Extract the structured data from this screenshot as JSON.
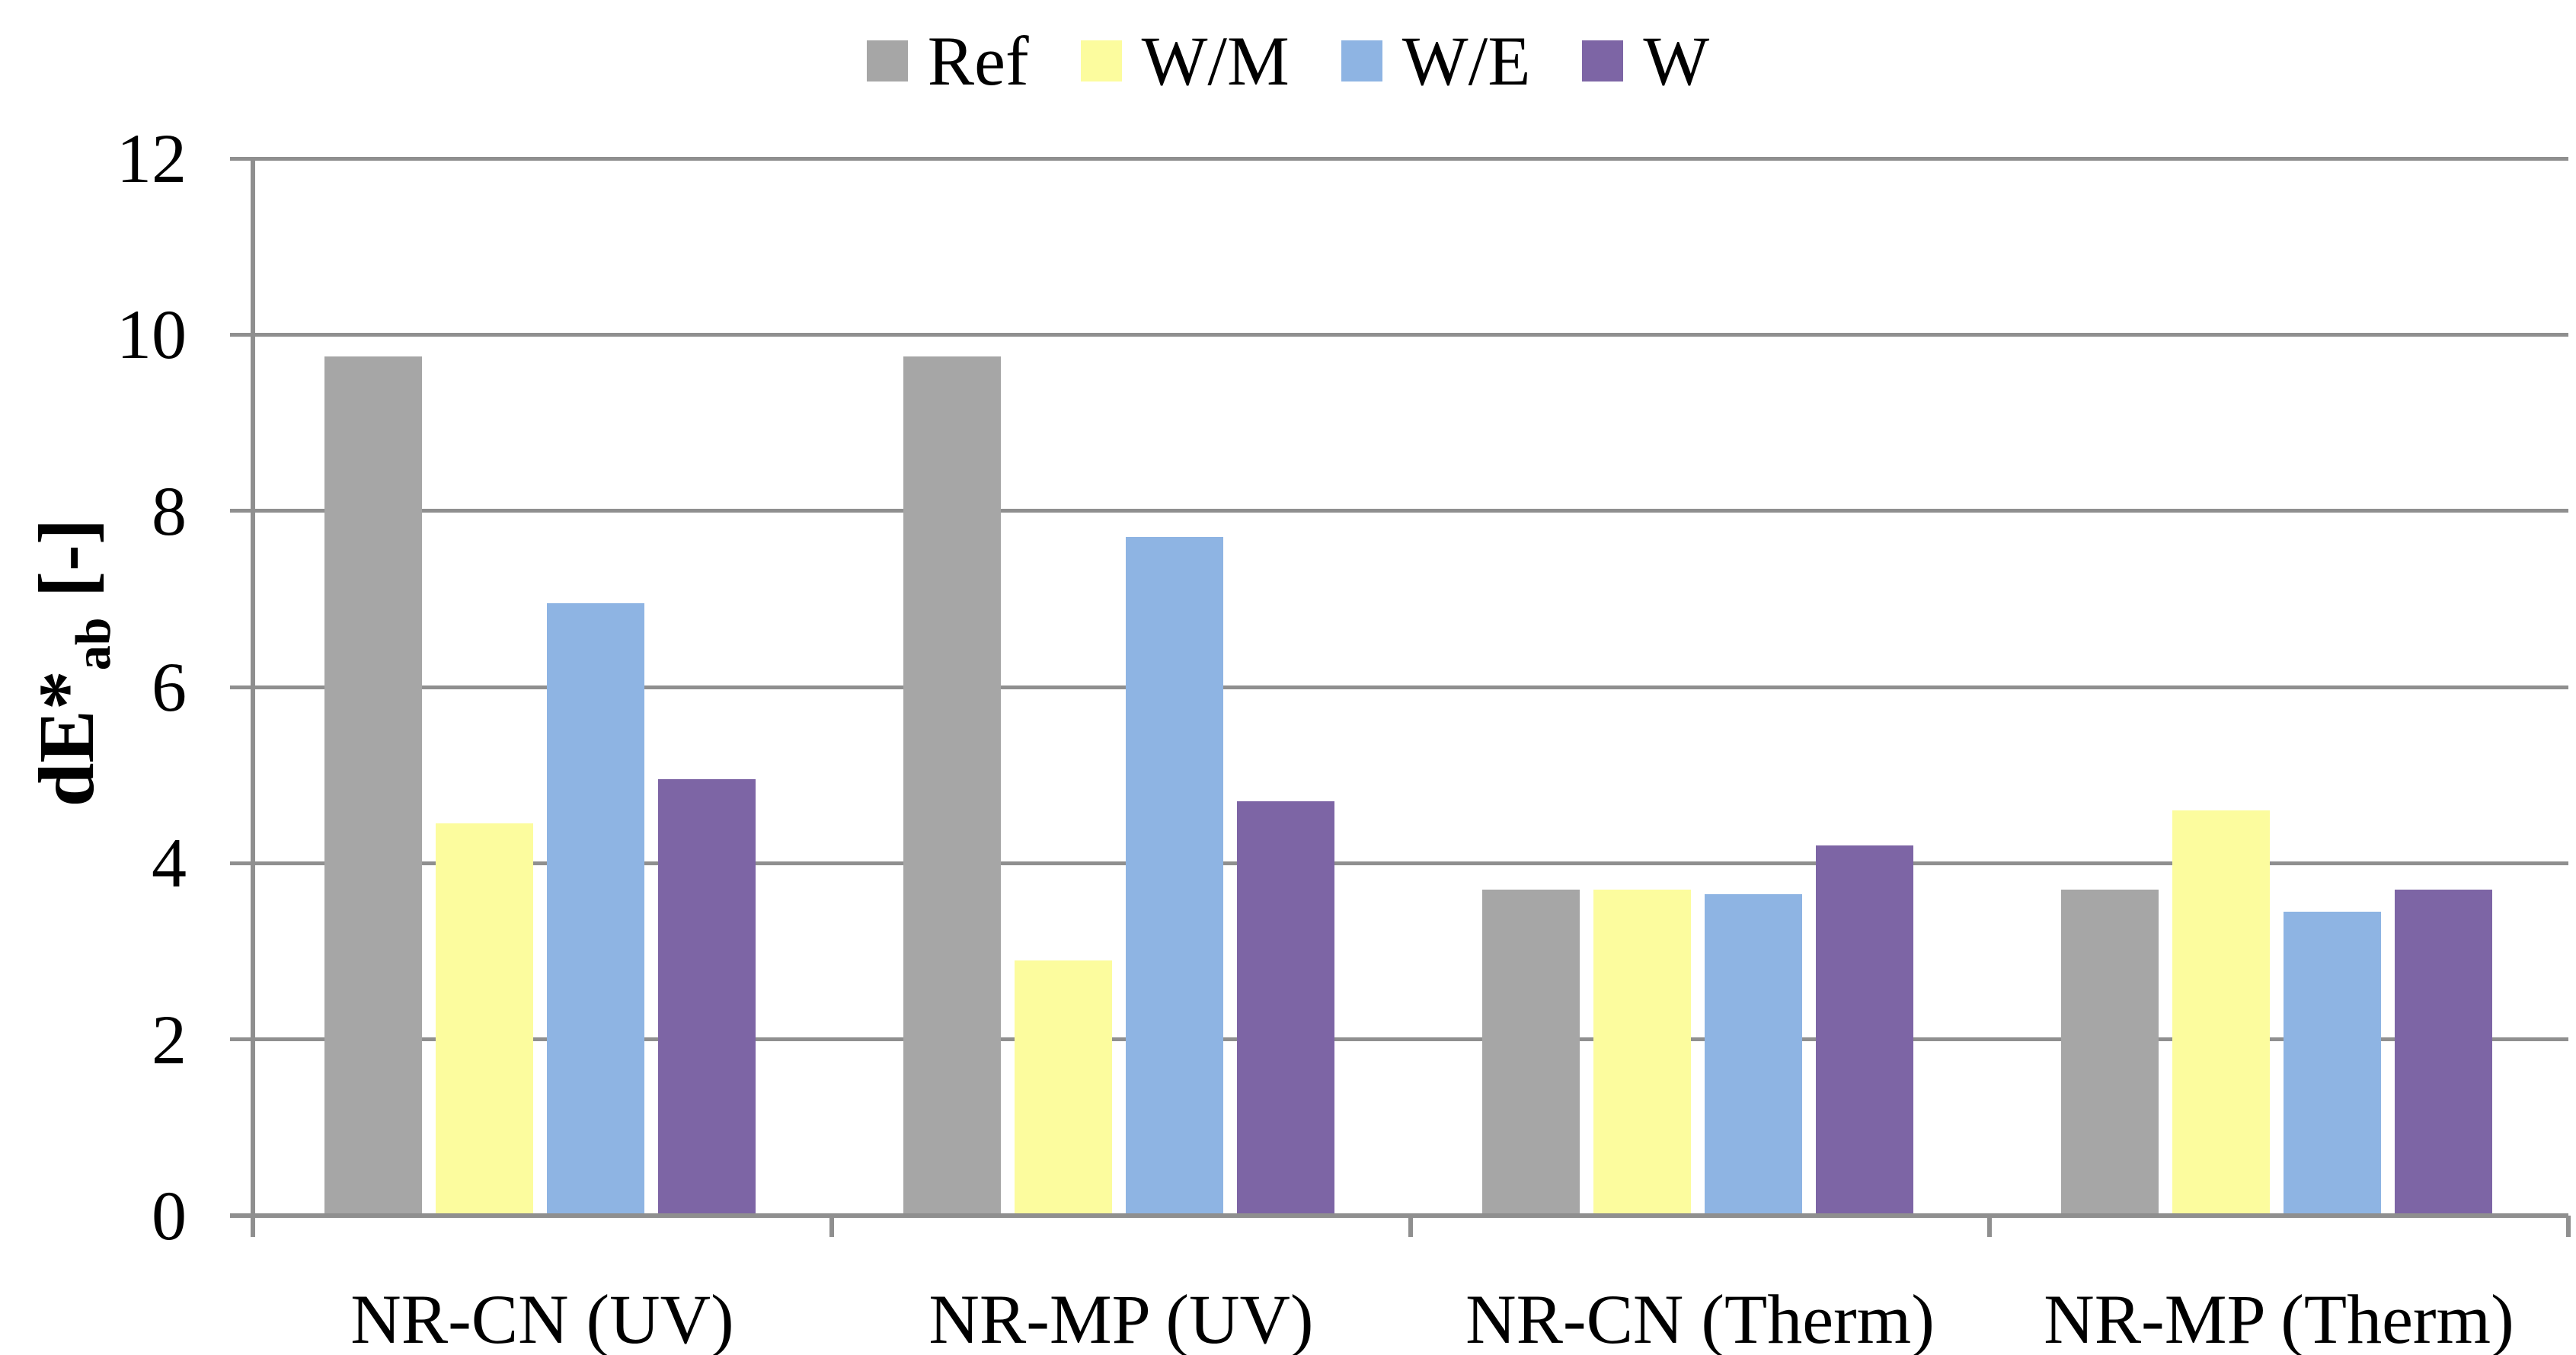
{
  "chart_data": {
    "type": "bar",
    "title": "",
    "categories": [
      "NR-CN (UV)",
      "NR-MP (UV)",
      "NR-CN (Therm)",
      "NR-MP (Therm)"
    ],
    "series": [
      {
        "name": "Ref",
        "color": "#A6A6A6",
        "values": [
          9.75,
          9.75,
          3.7,
          3.7
        ]
      },
      {
        "name": "W/M",
        "color": "#FCFC9E",
        "values": [
          4.45,
          2.9,
          3.7,
          4.6
        ]
      },
      {
        "name": "W/E",
        "color": "#8EB4E3",
        "values": [
          6.95,
          7.7,
          3.65,
          3.45
        ]
      },
      {
        "name": "W",
        "color": "#7D65A5",
        "values": [
          4.95,
          4.7,
          4.2,
          3.7
        ]
      }
    ],
    "xlabel": "",
    "ylabel": "dE*ab [-]",
    "ylabel_parts": {
      "main": "dE*",
      "sub": "ab",
      "unit": " [-]"
    },
    "y_ticks": [
      0,
      2,
      4,
      6,
      8,
      10,
      12
    ],
    "ylim": [
      0,
      12
    ],
    "grid": "horizontal",
    "grid_color": "#8F8F8F",
    "axis_color": "#8F8F8F",
    "legend_position": "top",
    "text_color": "#000000",
    "background_color": "#FFFFFF"
  }
}
